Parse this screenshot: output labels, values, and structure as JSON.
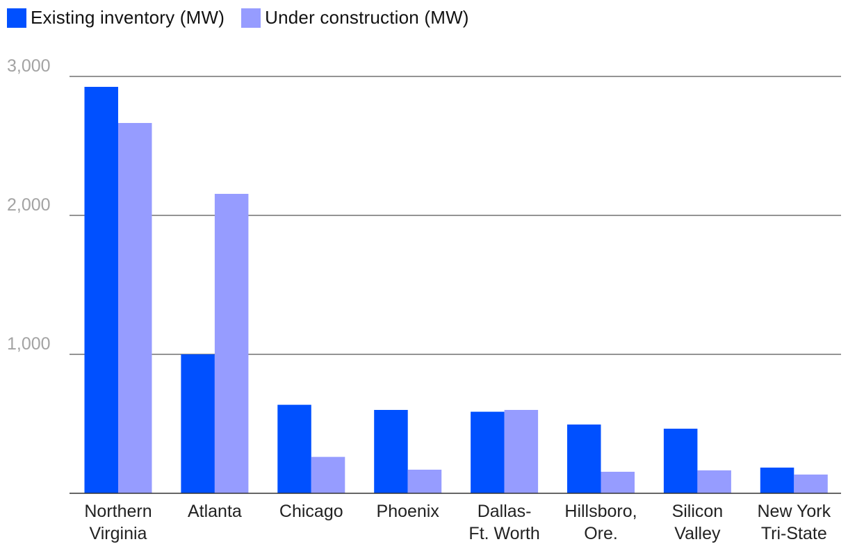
{
  "legend": {
    "existing_label": "Existing inventory (MW)",
    "construction_label": "Under construction (MW)"
  },
  "colors": {
    "existing": "#0050ff",
    "construction": "#969cff",
    "grid": "#555555",
    "tick_text": "#a3a3a3",
    "category_text": "#222222"
  },
  "chart_data": {
    "type": "bar",
    "title": "",
    "xlabel": "",
    "ylabel": "",
    "ylim": [
      0,
      3000
    ],
    "yticks": [
      1000,
      2000,
      3000
    ],
    "ytick_labels": [
      "1,000",
      "2,000",
      "3,000"
    ],
    "grid": true,
    "legend_position": "top-left",
    "categories": [
      [
        "Northern",
        "Virginia"
      ],
      [
        "Atlanta"
      ],
      [
        "Chicago"
      ],
      [
        "Phoenix"
      ],
      [
        "Dallas-",
        "Ft. Worth"
      ],
      [
        "Hillsboro,",
        "Ore."
      ],
      [
        "Silicon",
        "Valley"
      ],
      [
        "New York",
        "Tri-State"
      ]
    ],
    "series": [
      {
        "name": "Existing inventory (MW)",
        "values": [
          2925,
          1000,
          637,
          600,
          587,
          495,
          465,
          185
        ]
      },
      {
        "name": "Under construction (MW)",
        "values": [
          2665,
          2155,
          262,
          170,
          600,
          155,
          165,
          135
        ]
      }
    ]
  }
}
